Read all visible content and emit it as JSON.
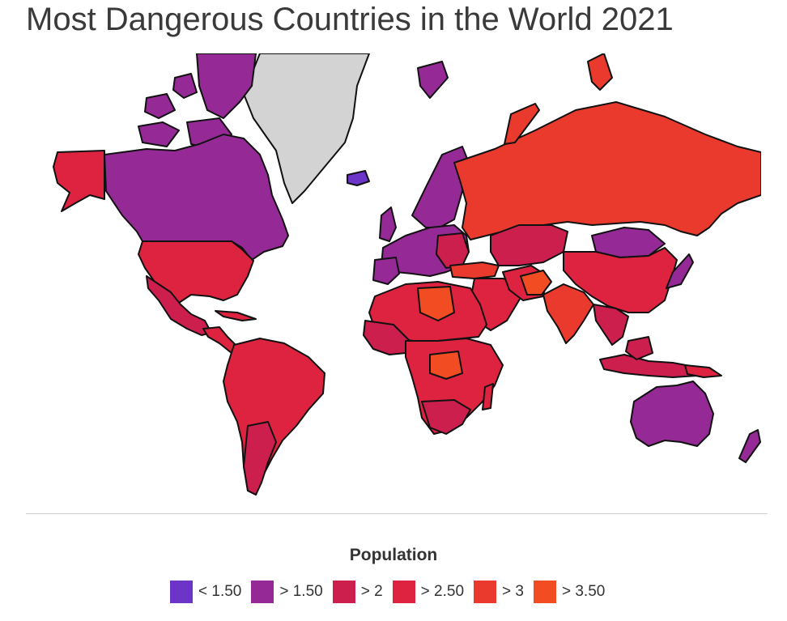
{
  "title": "Most Dangerous Countries in the World 2021",
  "legend": {
    "title": "Population",
    "items": [
      {
        "label": "< 1.50",
        "color": "#6c35c7"
      },
      {
        "label": "> 1.50",
        "color": "#952a96"
      },
      {
        "label": "> 2",
        "color": "#cc1f4e"
      },
      {
        "label": "> 2.50",
        "color": "#dd2340"
      },
      {
        "label": "> 3",
        "color": "#ea3a2e"
      },
      {
        "label": "> 3.50",
        "color": "#f24c22"
      }
    ]
  },
  "map": {
    "no_data_color": "#d3d3d3",
    "ocean_color": "#ffffff",
    "border_color": "#111111"
  }
}
